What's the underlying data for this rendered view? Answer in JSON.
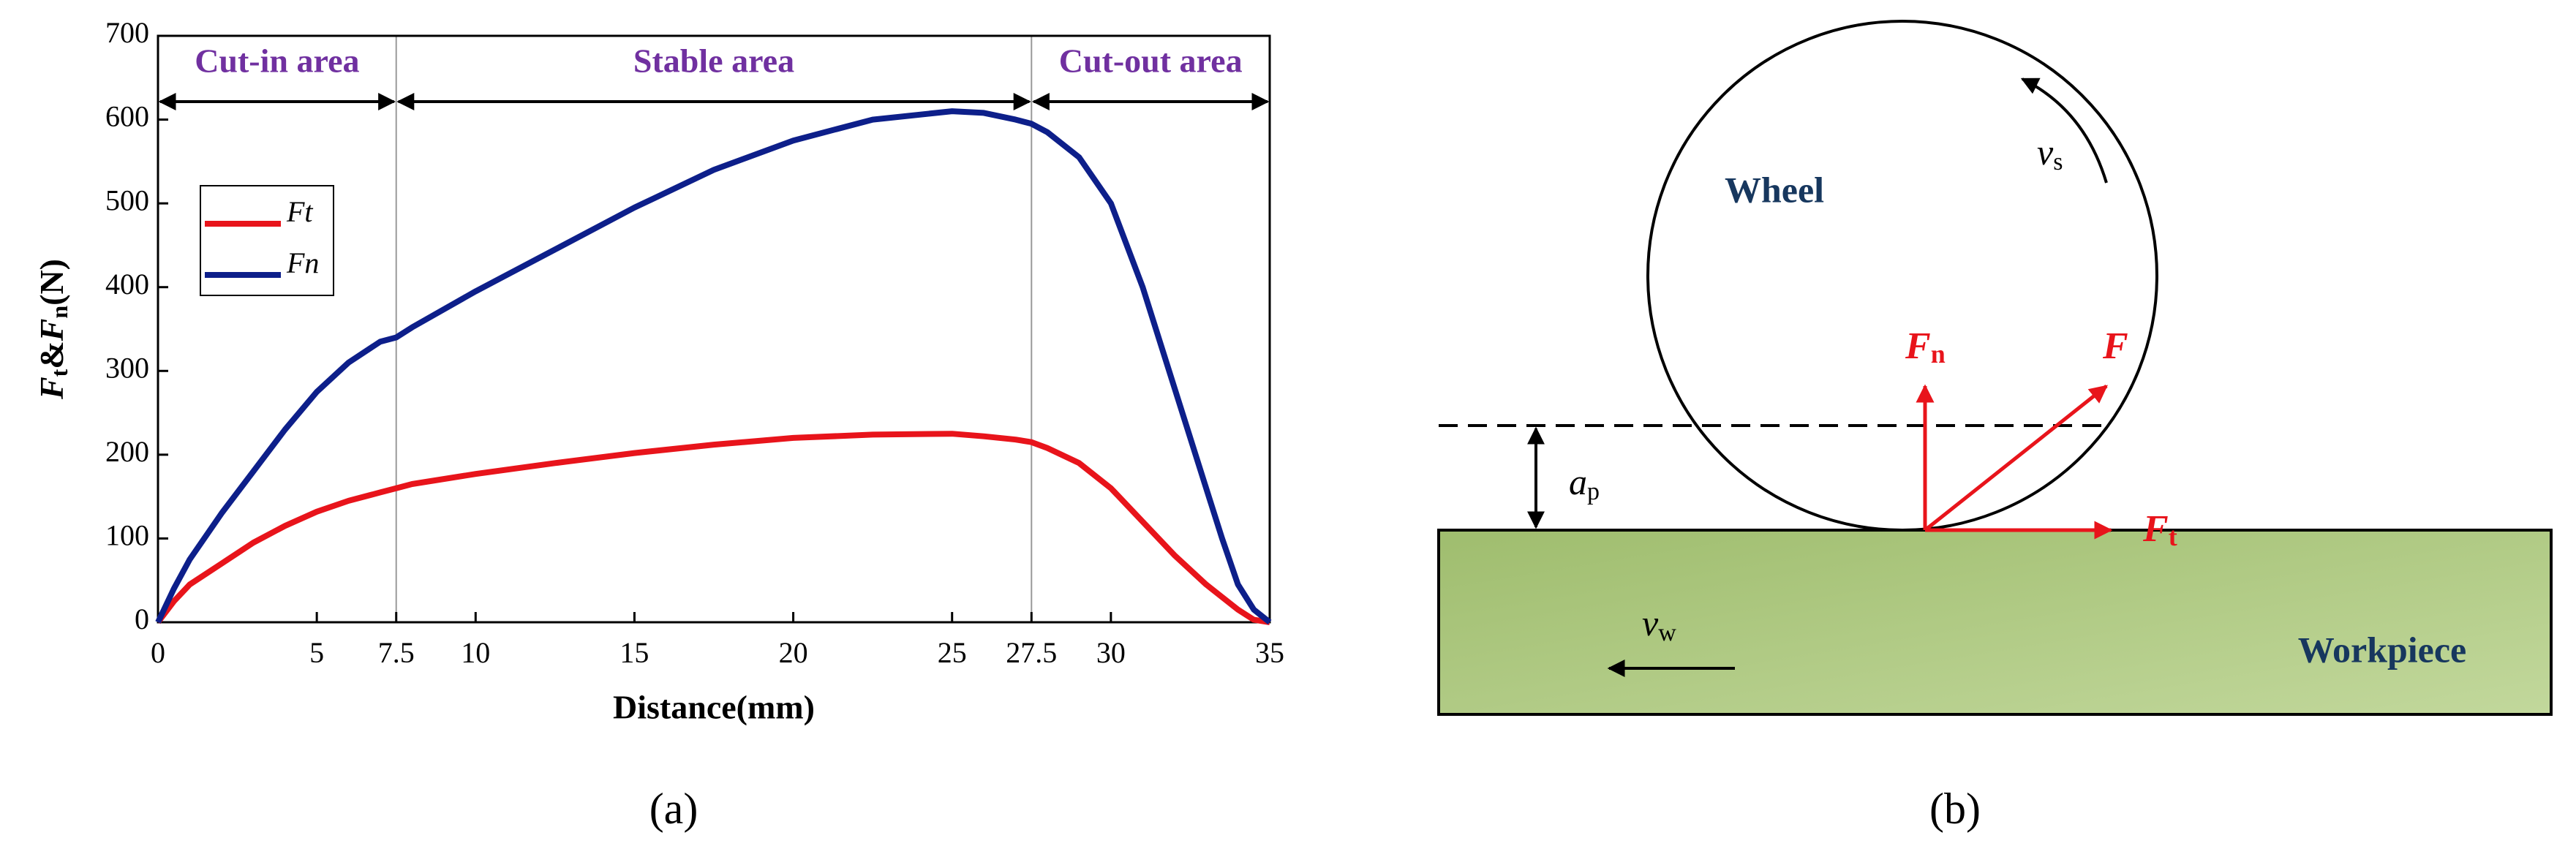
{
  "chart_data": {
    "type": "line",
    "xlabel": "Distance(mm)",
    "ylabel": [
      "F",
      "t",
      "&",
      "F",
      "n",
      "(N)"
    ],
    "x": [
      0,
      0.5,
      1,
      2,
      3,
      4,
      5,
      6,
      7,
      7.5,
      8,
      10,
      12.5,
      15,
      17.5,
      20,
      22.5,
      25,
      26,
      27,
      27.5,
      28,
      29,
      30,
      31,
      32,
      33,
      33.5,
      34,
      34.5,
      35
    ],
    "series": [
      {
        "name": "Ft",
        "color": "#e8141b",
        "values": [
          0,
          25,
          45,
          70,
          95,
          115,
          132,
          145,
          155,
          160,
          165,
          177,
          190,
          202,
          212,
          220,
          224,
          225,
          222,
          218,
          215,
          208,
          190,
          160,
          120,
          80,
          45,
          30,
          15,
          3,
          0
        ]
      },
      {
        "name": "Fn",
        "color": "#0d1f8a",
        "values": [
          0,
          40,
          75,
          130,
          180,
          230,
          275,
          310,
          335,
          340,
          352,
          395,
          445,
          495,
          540,
          575,
          600,
          610,
          608,
          600,
          595,
          585,
          555,
          500,
          400,
          280,
          160,
          100,
          45,
          15,
          0
        ]
      }
    ],
    "xlim": [
      0,
      35
    ],
    "xticks": [
      0,
      5,
      7.5,
      10,
      15,
      20,
      25,
      27.5,
      30,
      35
    ],
    "ylim": [
      0,
      700
    ],
    "yticks": [
      0,
      100,
      200,
      300,
      400,
      500,
      600,
      700
    ],
    "grid": false,
    "legend": "upper left",
    "regions": [
      {
        "label": "Cut-in area",
        "from": 0,
        "to": 7.5
      },
      {
        "label": "Stable area",
        "from": 7.5,
        "to": 27.5
      },
      {
        "label": "Cut-out area",
        "from": 27.5,
        "to": 35
      }
    ],
    "region_color": "#7030a0",
    "caption": "(a)"
  },
  "diagram": {
    "wheel": "Wheel",
    "workpiece": "Workpiece",
    "wheel_speed": {
      "main": "v",
      "sub": "s"
    },
    "workpiece_speed": {
      "main": "v",
      "sub": "w"
    },
    "depth": {
      "main": "a",
      "sub": "p"
    },
    "normal_force": {
      "main": "F",
      "sub": "n"
    },
    "resultant_force": "F",
    "tangential_force": {
      "main": "F",
      "sub": "t"
    },
    "caption": "(b)"
  }
}
